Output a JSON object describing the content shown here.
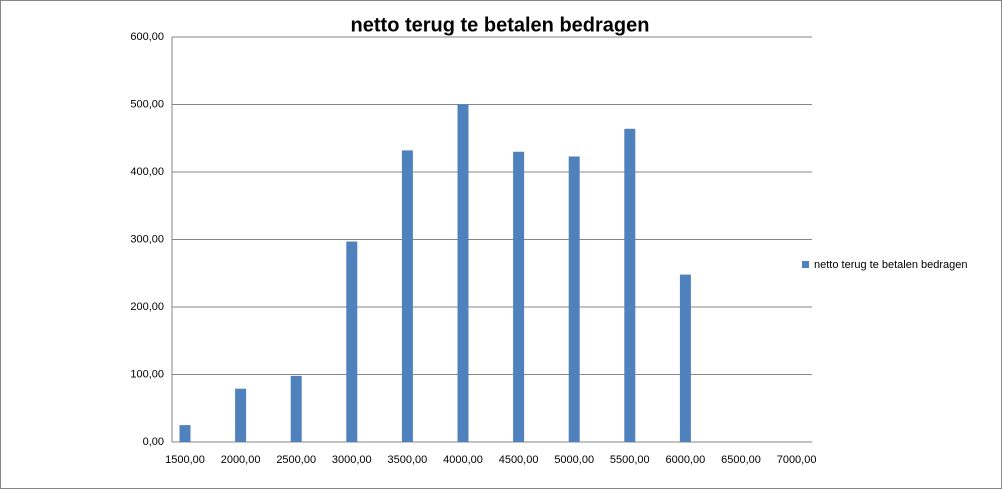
{
  "chart_data": {
    "type": "bar",
    "title": "netto terug te betalen bedragen",
    "categories": [
      "1500,00",
      "2000,00",
      "2500,00",
      "3000,00",
      "3500,00",
      "4000,00",
      "4500,00",
      "5000,00",
      "5500,00",
      "6000,00",
      "6500,00",
      "7000,00"
    ],
    "series": [
      {
        "name": "netto terug te betalen bedragen",
        "color": "#4f81bd",
        "values": [
          25,
          79,
          98,
          297,
          432,
          500,
          430,
          423,
          464,
          248,
          null,
          null
        ]
      }
    ],
    "ylim": [
      0,
      600
    ],
    "yticks": [
      {
        "value": 0,
        "label": "0,00"
      },
      {
        "value": 100,
        "label": "100,00"
      },
      {
        "value": 200,
        "label": "200,00"
      },
      {
        "value": 300,
        "label": "300,00"
      },
      {
        "value": 400,
        "label": "400,00"
      },
      {
        "value": 500,
        "label": "500,00"
      },
      {
        "value": 600,
        "label": "600,00"
      }
    ],
    "grid": true,
    "legend": "right"
  }
}
